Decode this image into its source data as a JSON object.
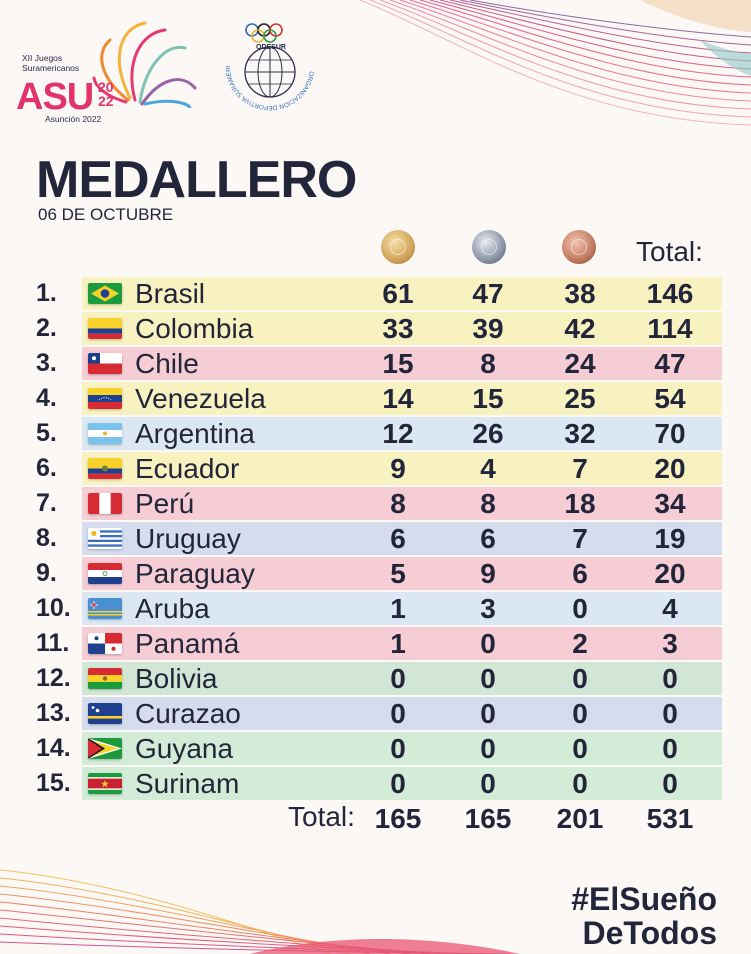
{
  "logo": {
    "line1": "XII Juegos",
    "line2": "Suramericanos",
    "brand": "ASU",
    "year_top": "20",
    "year_bottom": "22",
    "city": "Asunción 2022"
  },
  "odesur": {
    "name": "ODESUR",
    "ring_text": "ORGANIZACIÓN DEPORTIVA SURAMERICANA"
  },
  "title": "MEDALLERO",
  "date": "06 DE OCTUBRE",
  "columns": {
    "gold_icon": "gold-medal-icon",
    "silver_icon": "silver-medal-icon",
    "bronze_icon": "bronze-medal-icon",
    "total": "Total:"
  },
  "rows": [
    {
      "rank": "1.",
      "country": "Brasil",
      "gold": "61",
      "silver": "47",
      "bronze": "38",
      "total": "146",
      "bg": "#f8f2c0",
      "flag": "brazil-flag-icon"
    },
    {
      "rank": "2.",
      "country": "Colombia",
      "gold": "33",
      "silver": "39",
      "bronze": "42",
      "total": "114",
      "bg": "#f8f2c0",
      "flag": "colombia-flag-icon"
    },
    {
      "rank": "3.",
      "country": "Chile",
      "gold": "15",
      "silver": "8",
      "bronze": "24",
      "total": "47",
      "bg": "#f6cdd5",
      "flag": "chile-flag-icon"
    },
    {
      "rank": "4.",
      "country": "Venezuela",
      "gold": "14",
      "silver": "15",
      "bronze": "25",
      "total": "54",
      "bg": "#f8f2c0",
      "flag": "venezuela-flag-icon"
    },
    {
      "rank": "5.",
      "country": "Argentina",
      "gold": "12",
      "silver": "26",
      "bronze": "32",
      "total": "70",
      "bg": "#dbe7f2",
      "flag": "argentina-flag-icon"
    },
    {
      "rank": "6.",
      "country": "Ecuador",
      "gold": "9",
      "silver": "4",
      "bronze": "7",
      "total": "20",
      "bg": "#f8f2c0",
      "flag": "ecuador-flag-icon"
    },
    {
      "rank": "7.",
      "country": "Perú",
      "gold": "8",
      "silver": "8",
      "bronze": "18",
      "total": "34",
      "bg": "#f6cdd5",
      "flag": "peru-flag-icon"
    },
    {
      "rank": "8.",
      "country": "Uruguay",
      "gold": "6",
      "silver": "6",
      "bronze": "7",
      "total": "19",
      "bg": "#d5dcee",
      "flag": "uruguay-flag-icon"
    },
    {
      "rank": "9.",
      "country": "Paraguay",
      "gold": "5",
      "silver": "9",
      "bronze": "6",
      "total": "20",
      "bg": "#f6cdd5",
      "flag": "paraguay-flag-icon"
    },
    {
      "rank": "10.",
      "country": "Aruba",
      "gold": "1",
      "silver": "3",
      "bronze": "0",
      "total": "4",
      "bg": "#dbe7f2",
      "flag": "aruba-flag-icon"
    },
    {
      "rank": "11.",
      "country": "Panamá",
      "gold": "1",
      "silver": "0",
      "bronze": "2",
      "total": "3",
      "bg": "#f6cdd5",
      "flag": "panama-flag-icon"
    },
    {
      "rank": "12.",
      "country": "Bolivia",
      "gold": "0",
      "silver": "0",
      "bronze": "0",
      "total": "0",
      "bg": "#d2e6d6",
      "flag": "bolivia-flag-icon"
    },
    {
      "rank": "13.",
      "country": "Curazao",
      "gold": "0",
      "silver": "0",
      "bronze": "0",
      "total": "0",
      "bg": "#d5dcee",
      "flag": "curacao-flag-icon"
    },
    {
      "rank": "14.",
      "country": "Guyana",
      "gold": "0",
      "silver": "0",
      "bronze": "0",
      "total": "0",
      "bg": "#d3ecd8",
      "flag": "guyana-flag-icon"
    },
    {
      "rank": "15.",
      "country": "Surinam",
      "gold": "0",
      "silver": "0",
      "bronze": "0",
      "total": "0",
      "bg": "#d3ecd8",
      "flag": "suriname-flag-icon"
    }
  ],
  "totals": {
    "label": "Total:",
    "gold": "165",
    "silver": "165",
    "bronze": "201",
    "total": "531"
  },
  "hashtag": {
    "line1": "#ElSueño",
    "line2": "DeTodos"
  }
}
